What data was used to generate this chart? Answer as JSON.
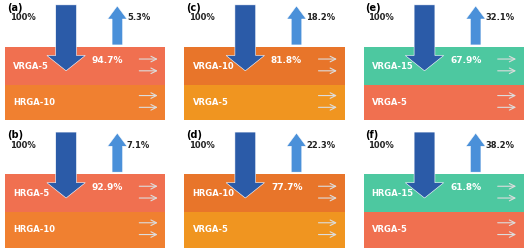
{
  "panels": [
    {
      "label": "(a)",
      "top_layer_label": "VRGA-5",
      "bot_layer_label": "HRGA-10",
      "top_color": "#F07050",
      "bot_color": "#F08030",
      "pct_in": "100%",
      "pct_out": "5.3%",
      "pct_abs": "94.7%",
      "row": 0,
      "col": 0
    },
    {
      "label": "(b)",
      "top_layer_label": "HRGA-5",
      "bot_layer_label": "HRGA-10",
      "top_color": "#F07050",
      "bot_color": "#F08030",
      "pct_in": "100%",
      "pct_out": "7.1%",
      "pct_abs": "92.9%",
      "row": 1,
      "col": 0
    },
    {
      "label": "(c)",
      "top_layer_label": "VRGA-10",
      "bot_layer_label": "VRGA-5",
      "top_color": "#E8752A",
      "bot_color": "#F09520",
      "pct_in": "100%",
      "pct_out": "18.2%",
      "pct_abs": "81.8%",
      "row": 0,
      "col": 1
    },
    {
      "label": "(d)",
      "top_layer_label": "HRGA-10",
      "bot_layer_label": "VRGA-5",
      "top_color": "#E8752A",
      "bot_color": "#F09520",
      "pct_in": "100%",
      "pct_out": "22.3%",
      "pct_abs": "77.7%",
      "row": 1,
      "col": 1
    },
    {
      "label": "(e)",
      "top_layer_label": "VRGA-15",
      "bot_layer_label": "VRGA-5",
      "top_color": "#4DC8A0",
      "bot_color": "#F07050",
      "pct_in": "100%",
      "pct_out": "32.1%",
      "pct_abs": "67.9%",
      "row": 0,
      "col": 2
    },
    {
      "label": "(f)",
      "top_layer_label": "HRGA-15",
      "bot_layer_label": "VRGA-5",
      "top_color": "#4DC8A0",
      "bot_color": "#F07050",
      "pct_in": "100%",
      "pct_out": "38.2%",
      "pct_abs": "61.8%",
      "row": 1,
      "col": 2
    }
  ],
  "arrow_down_color": "#2B5BA8",
  "arrow_up_color": "#4A90D9",
  "small_arrow_color": "#DDDDDD",
  "label_fontsize": 6.5,
  "pct_fontsize": 6.0,
  "inner_pct_fontsize": 6.5
}
